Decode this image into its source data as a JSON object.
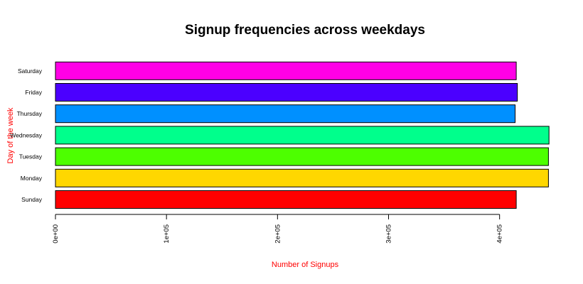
{
  "chart_data": {
    "type": "bar",
    "orientation": "horizontal",
    "title": "Signup frequencies across weekdays",
    "xlabel": "Number of Signups",
    "ylabel": "Day of the week",
    "categories": [
      "Sunday",
      "Monday",
      "Tuesday",
      "Wednesday",
      "Thursday",
      "Friday",
      "Saturday"
    ],
    "values": [
      415000,
      444000,
      444000,
      444500,
      414000,
      416000,
      415000
    ],
    "colors": [
      "#ff0000",
      "#ffd700",
      "#4dff00",
      "#00ff8c",
      "#0090ff",
      "#4b00ff",
      "#ff00e6"
    ],
    "xlim": [
      0,
      450000
    ],
    "xticks": [
      0,
      100000,
      200000,
      300000,
      400000
    ],
    "xtick_labels": [
      "0e+00",
      "1e+05",
      "2e+05",
      "3e+05",
      "4e+05"
    ],
    "axis_label_color": "#ff0000",
    "grid": false
  }
}
